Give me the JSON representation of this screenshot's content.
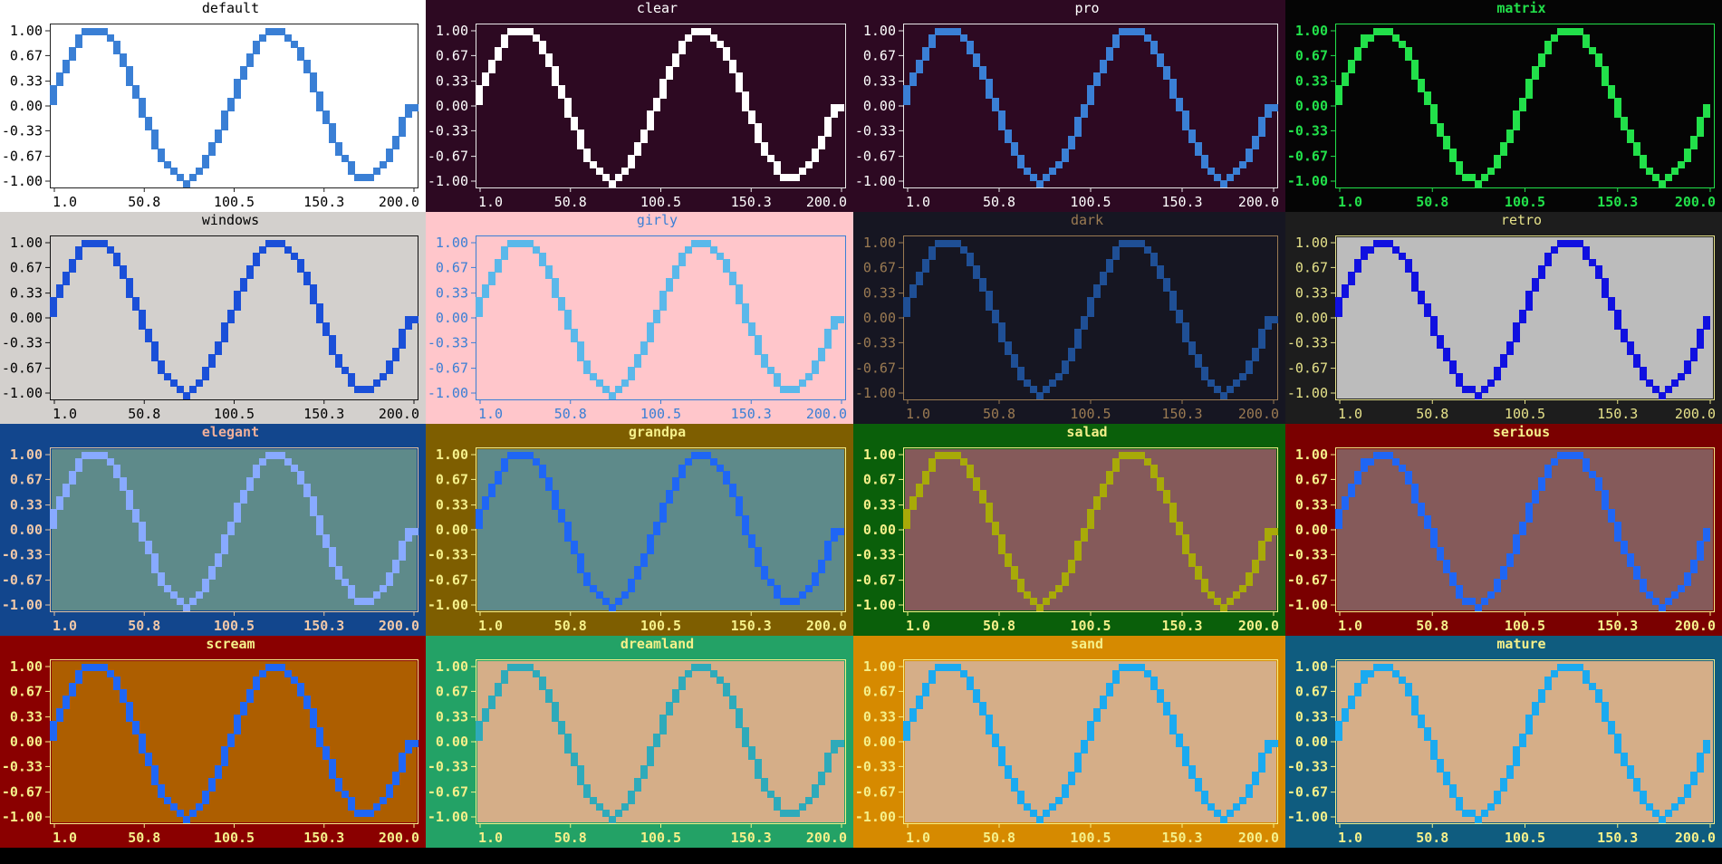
{
  "chart_data": {
    "type": "line",
    "series_kind": "sine",
    "x_range": [
      1.0,
      200.0
    ],
    "periods": 2,
    "ylim": [
      -1.0,
      1.0
    ],
    "xticks": [
      "1.0",
      "50.8",
      "100.5",
      "150.3",
      "200.0"
    ],
    "yticks": [
      {
        "label": "1.00",
        "value": 1.0
      },
      {
        "label": "0.67",
        "value": 0.67
      },
      {
        "label": "0.33",
        "value": 0.33
      },
      {
        "label": "0.00",
        "value": 0.0
      },
      {
        "label": "-0.33",
        "value": -0.33
      },
      {
        "label": "-0.67",
        "value": -0.67
      },
      {
        "label": "-1.00",
        "value": -1.0
      }
    ],
    "panels": [
      {
        "title": "default",
        "bg": "#ffffff",
        "canvas": null,
        "axes": "#222222",
        "title_color": "#000000",
        "label_color": "#000000",
        "line": "#3a7fd5",
        "bold": false
      },
      {
        "title": "clear",
        "bg": "#2d0922",
        "canvas": null,
        "axes": "#e8e8e8",
        "title_color": "#ffffff",
        "label_color": "#ffffff",
        "line": "#ffffff",
        "bold": false
      },
      {
        "title": "pro",
        "bg": "#2d0922",
        "canvas": null,
        "axes": "#e8e8e8",
        "title_color": "#ffffff",
        "label_color": "#ffffff",
        "line": "#3a7fd5",
        "bold": false
      },
      {
        "title": "matrix",
        "bg": "#050505",
        "canvas": null,
        "axes": "#22e04a",
        "title_color": "#22e04a",
        "label_color": "#22e04a",
        "line": "#22e04a",
        "bold": true
      },
      {
        "title": "windows",
        "bg": "#d3d0cd",
        "canvas": null,
        "axes": "#111111",
        "title_color": "#000000",
        "label_color": "#000000",
        "line": "#1a4fd8",
        "bold": false
      },
      {
        "title": "girly",
        "bg": "#ffc6cb",
        "canvas": null,
        "axes": "#3a7fd5",
        "title_color": "#3a7fd5",
        "label_color": "#3a7fd5",
        "line": "#5ab8ea",
        "bold": false
      },
      {
        "title": "dark",
        "bg": "#161622",
        "canvas": null,
        "axes": "#9a7a52",
        "title_color": "#9a7a52",
        "label_color": "#9a7a52",
        "line": "#1f4f95",
        "bold": false
      },
      {
        "title": "retro",
        "bg": "#1d1d1d",
        "canvas": "#bcbcbc",
        "axes": "#e6e28a",
        "title_color": "#e6e28a",
        "label_color": "#e6e28a",
        "line": "#1010e0",
        "bold": false
      },
      {
        "title": "elegant",
        "bg": "#12468d",
        "canvas": "#5e8a8a",
        "axes": "#e6c4a0",
        "title_color": "#f0b09a",
        "label_color": "#f0c8a8",
        "line": "#88aaff",
        "bold": true
      },
      {
        "title": "grandpa",
        "bg": "#7e5e00",
        "canvas": "#5e8a8a",
        "axes": "#f5f08a",
        "title_color": "#f5f08a",
        "label_color": "#f5f08a",
        "line": "#1f66f5",
        "bold": true
      },
      {
        "title": "salad",
        "bg": "#0a5f0a",
        "canvas": "#855a5a",
        "axes": "#f5f08a",
        "title_color": "#f5f08a",
        "label_color": "#f5f08a",
        "line": "#a8aa08",
        "bold": true
      },
      {
        "title": "serious",
        "bg": "#7a0000",
        "canvas": "#855a5a",
        "axes": "#f5f08a",
        "title_color": "#f5f08a",
        "label_color": "#f5f08a",
        "line": "#1f66f5",
        "bold": true
      },
      {
        "title": "scream",
        "bg": "#8a0000",
        "canvas": "#ad5e00",
        "axes": "#f5f08a",
        "title_color": "#f5f08a",
        "label_color": "#f5f08a",
        "line": "#1f66f5",
        "bold": true
      },
      {
        "title": "dreamland",
        "bg": "#23a266",
        "canvas": "#d5ae88",
        "axes": "#f5f08a",
        "title_color": "#f5f08a",
        "label_color": "#f5f08a",
        "line": "#2eaaba",
        "bold": true
      },
      {
        "title": "sand",
        "bg": "#d68a00",
        "canvas": "#d5ae88",
        "axes": "#f5f08a",
        "title_color": "#f5f08a",
        "label_color": "#f5f08a",
        "line": "#1aaaf0",
        "bold": true
      },
      {
        "title": "mature",
        "bg": "#0f5c7f",
        "canvas": "#d5ae88",
        "axes": "#f5f08a",
        "title_color": "#f5f08a",
        "label_color": "#f5f08a",
        "line": "#1aaaf0",
        "bold": true
      }
    ]
  }
}
